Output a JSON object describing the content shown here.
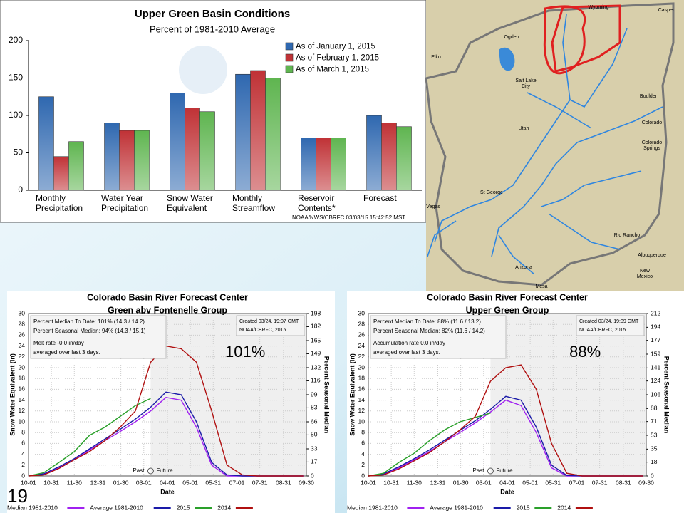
{
  "slide_number": "19",
  "map": {
    "labels": [
      "Wyoming",
      "Casper",
      "Ogden",
      "Elko",
      "Salt Lake\nCity",
      "Utah",
      "Boulder",
      "Colorado",
      "Colorado\nSprings",
      "St George",
      "Vegas",
      "Arizona",
      "Rio Rancho",
      "Albuquerque",
      "New\nMexico",
      "Mesa"
    ]
  },
  "chart_data": [
    {
      "type": "bar",
      "title": "Upper Green Basin Conditions",
      "subtitle": "Percent of 1981-2010 Average",
      "categories": [
        "Monthly\nPrecipitation",
        "Water Year\nPrecipitation",
        "Snow Water\nEquivalent",
        "Monthly\nStreamflow",
        "Reservoir\nContents*",
        "Forecast"
      ],
      "series": [
        {
          "name": "As of January 1, 2015",
          "color": "#2f68b0",
          "values": [
            125,
            90,
            130,
            155,
            70,
            100
          ]
        },
        {
          "name": "As of February 1, 2015",
          "color": "#c03236",
          "values": [
            45,
            80,
            110,
            160,
            70,
            90
          ]
        },
        {
          "name": "As of March 1, 2015",
          "color": "#5fb550",
          "values": [
            65,
            80,
            105,
            150,
            70,
            85
          ]
        }
      ],
      "ylim": [
        0,
        200
      ],
      "yticks": [
        0,
        50,
        100,
        150,
        200
      ],
      "note": "NOAA/NWS/CBRFC 03/03/15 15:42:52 MST"
    },
    {
      "type": "line",
      "title": "Colorado Basin River Forecast Center",
      "subtitle": "Green abv Fontenelle Group",
      "ylabel": "Snow Water Equivalent (in)",
      "y2label": "Percent Seasonal Median",
      "xlabel": "Date",
      "annotations": [
        "Percent Median To Date: 101% (14.3 / 14.2)",
        "Percent Seasonal Median: 94% (14.3 / 15.1)",
        "Melt rate -0.0 in/day",
        "averaged over last 3 days."
      ],
      "created": [
        "Created 03/24, 19:07 GMT",
        "NOAA/CBRFC, 2015"
      ],
      "past": "Past",
      "future": "Future",
      "highlight": "101%",
      "x": [
        0,
        20,
        40,
        60,
        80,
        100,
        120,
        140,
        160,
        180,
        200,
        220,
        240,
        260,
        280,
        300,
        320,
        340,
        360
      ],
      "series": [
        {
          "name": "Median 1981-2010",
          "color": "#a020f0",
          "values": [
            0,
            0.3,
            1.5,
            3,
            4.8,
            6.5,
            8.2,
            10,
            12,
            14.5,
            14,
            9,
            2,
            0,
            0,
            0,
            0,
            0,
            0
          ]
        },
        {
          "name": "Average 1981-2010",
          "color": "#1a1aa8",
          "values": [
            0,
            0.4,
            1.7,
            3.2,
            5,
            6.8,
            8.6,
            10.5,
            12.7,
            15.5,
            15,
            10,
            2.5,
            0.2,
            0,
            0,
            0,
            0,
            0
          ]
        },
        {
          "name": "2015",
          "color": "#2aa02a",
          "values": [
            0,
            0.6,
            2.5,
            4.5,
            7.5,
            9,
            11,
            13,
            14.3,
            null,
            null,
            null,
            null,
            null,
            null,
            null,
            null,
            null,
            null
          ]
        },
        {
          "name": "2014",
          "color": "#b01010",
          "values": [
            0,
            0.2,
            1.4,
            3,
            4.5,
            6.5,
            9,
            12,
            21,
            24,
            23.5,
            21,
            12,
            2,
            0.2,
            0,
            0,
            0,
            0
          ]
        }
      ],
      "xlim": [
        0,
        364
      ],
      "xticks": [
        {
          "value": 0,
          "label": "10-01"
        },
        {
          "value": 30,
          "label": "10-31"
        },
        {
          "value": 60,
          "label": "11-30"
        },
        {
          "value": 91,
          "label": "12-31"
        },
        {
          "value": 121,
          "label": "01-30"
        },
        {
          "value": 151,
          "label": "03-01"
        },
        {
          "value": 182,
          "label": "04-01"
        },
        {
          "value": 212,
          "label": "05-01"
        },
        {
          "value": 242,
          "label": "05-31"
        },
        {
          "value": 273,
          "label": "07-01"
        },
        {
          "value": 303,
          "label": "07-31"
        },
        {
          "value": 334,
          "label": "08-31"
        },
        {
          "value": 364,
          "label": "09-30"
        }
      ],
      "ylim": [
        0,
        30
      ],
      "yticks": [
        0,
        2,
        4,
        6,
        8,
        10,
        12,
        14,
        16,
        18,
        20,
        22,
        24,
        26,
        28,
        30
      ],
      "y2lim": [
        0,
        198
      ],
      "y2ticks": [
        0,
        17,
        33,
        50,
        66,
        83,
        99,
        116,
        132,
        149,
        165,
        182,
        198
      ],
      "grid": true
    },
    {
      "type": "line",
      "title": "Colorado Basin River Forecast Center",
      "subtitle": "Upper Green Group",
      "ylabel": "Snow Water Equivalent (in)",
      "y2label": "Percent Seasonal Median",
      "xlabel": "Date",
      "annotations": [
        "Percent Median To Date: 88% (11.6 / 13.2)",
        "Percent Seasonal Median: 82% (11.6 / 14.2)",
        "Accumulation rate 0.0 in/day",
        "averaged over last 3 days."
      ],
      "created": [
        "Created 03/24, 19:09 GMT",
        "NOAA/CBRFC, 2015"
      ],
      "past": "Past",
      "future": "Future",
      "highlight": "88%",
      "x": [
        0,
        20,
        40,
        60,
        80,
        100,
        120,
        140,
        160,
        180,
        200,
        220,
        240,
        260,
        280,
        300,
        320,
        340,
        360
      ],
      "series": [
        {
          "name": "Median 1981-2010",
          "color": "#a020f0",
          "values": [
            0,
            0.3,
            1.5,
            3,
            4.5,
            6.3,
            8,
            9.8,
            11.8,
            14,
            13,
            8,
            1.5,
            0,
            0,
            0,
            0,
            0,
            0
          ]
        },
        {
          "name": "Average 1981-2010",
          "color": "#1a1aa8",
          "values": [
            0,
            0.4,
            1.7,
            3.2,
            4.8,
            6.6,
            8.4,
            10.2,
            12.3,
            14.7,
            14,
            9,
            2,
            0.1,
            0,
            0,
            0,
            0,
            0
          ]
        },
        {
          "name": "2015",
          "color": "#2aa02a",
          "values": [
            0,
            0.5,
            2.5,
            4.2,
            6.5,
            8.5,
            10,
            10.8,
            11.6,
            null,
            null,
            null,
            null,
            null,
            null,
            null,
            null,
            null,
            null
          ]
        },
        {
          "name": "2014",
          "color": "#b01010",
          "values": [
            0,
            0.2,
            1.3,
            2.8,
            4.3,
            6.3,
            8.5,
            11,
            17.5,
            20,
            20.5,
            16,
            6,
            0.5,
            0,
            0,
            0,
            0,
            0
          ]
        }
      ],
      "xlim": [
        0,
        364
      ],
      "xticks": [
        {
          "value": 0,
          "label": "10-01"
        },
        {
          "value": 30,
          "label": "10-31"
        },
        {
          "value": 60,
          "label": "11-30"
        },
        {
          "value": 91,
          "label": "12-31"
        },
        {
          "value": 121,
          "label": "01-30"
        },
        {
          "value": 151,
          "label": "03-01"
        },
        {
          "value": 182,
          "label": "04-01"
        },
        {
          "value": 212,
          "label": "05-01"
        },
        {
          "value": 242,
          "label": "05-31"
        },
        {
          "value": 273,
          "label": "07-01"
        },
        {
          "value": 303,
          "label": "07-31"
        },
        {
          "value": 334,
          "label": "08-31"
        },
        {
          "value": 364,
          "label": "09-30"
        }
      ],
      "ylim": [
        0,
        30
      ],
      "yticks": [
        0,
        2,
        4,
        6,
        8,
        10,
        12,
        14,
        16,
        18,
        20,
        22,
        24,
        26,
        28,
        30
      ],
      "y2lim": [
        0,
        212
      ],
      "y2ticks": [
        0,
        18,
        35,
        53,
        71,
        88,
        106,
        124,
        141,
        159,
        177,
        194,
        212
      ],
      "grid": true
    }
  ]
}
